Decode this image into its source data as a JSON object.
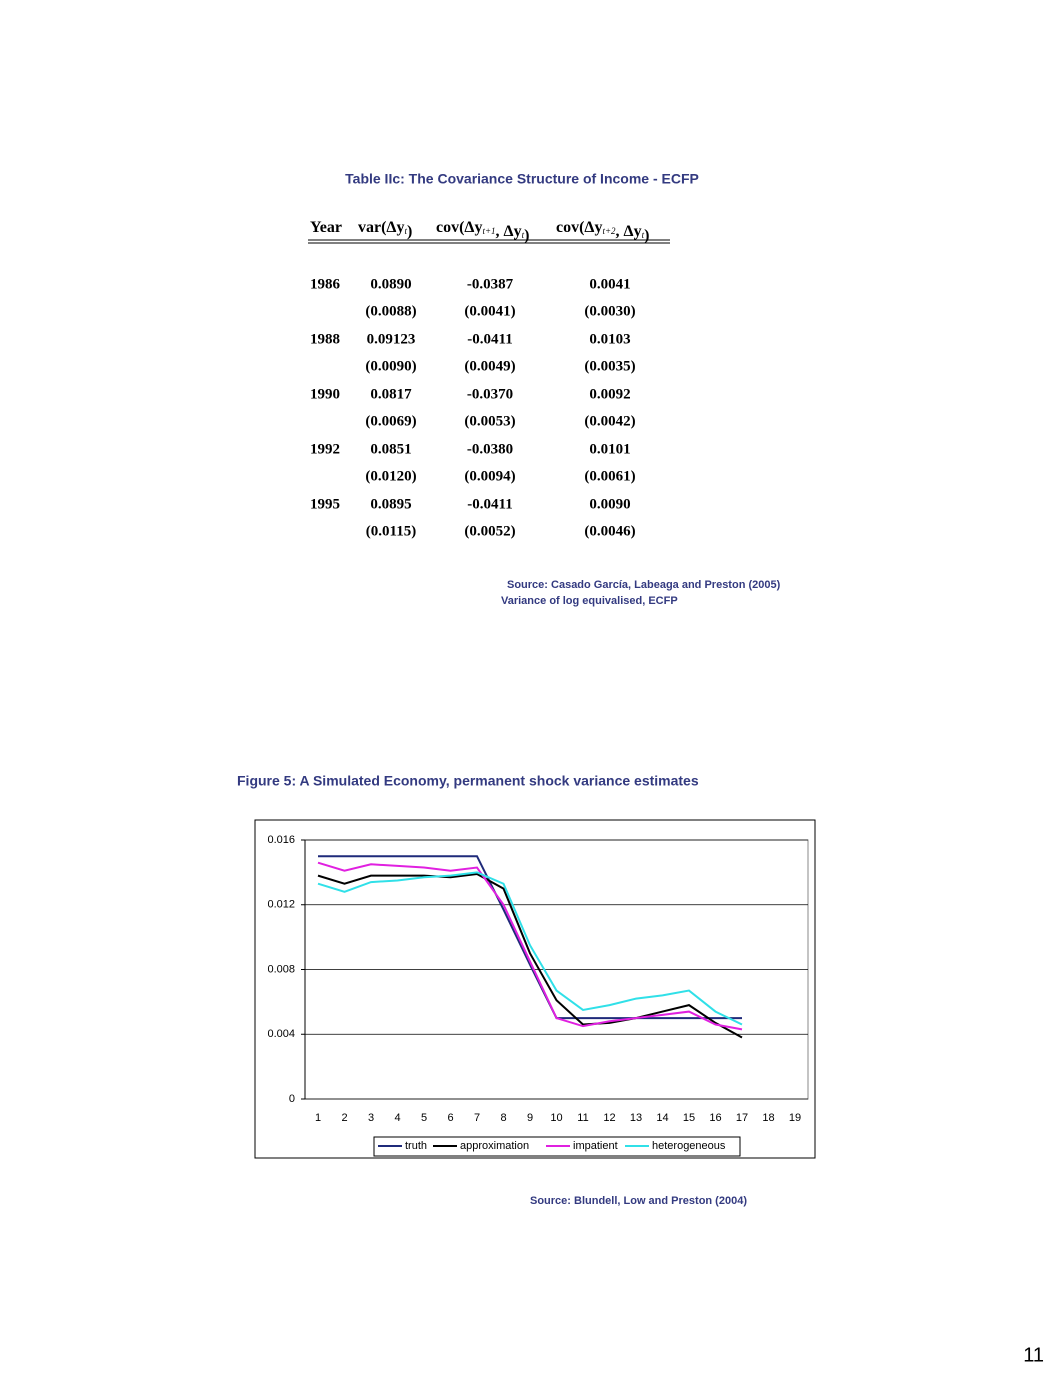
{
  "table": {
    "title": "Table IIc: The Covariance Structure of Income - ECFP",
    "header": [
      [
        {
          "text": "Year"
        }
      ],
      [
        {
          "text": "var(Δy"
        },
        {
          "sub": "t"
        },
        {
          "text": ")"
        }
      ],
      [
        {
          "text": "cov(Δy"
        },
        {
          "sub": "t+1"
        },
        {
          "text": ", Δy"
        },
        {
          "sub": "t"
        },
        {
          "text": ")"
        }
      ],
      [
        {
          "text": "cov(Δy"
        },
        {
          "sub": "t+2"
        },
        {
          "text": ", Δy"
        },
        {
          "sub": "t"
        },
        {
          "text": ")"
        }
      ]
    ],
    "rows": [
      {
        "year": "1986",
        "estimates": [
          "0.0890",
          "-0.0387",
          "0.0041"
        ],
        "std_errors": [
          "(0.0088)",
          "(0.0041)",
          "(0.0030)"
        ]
      },
      {
        "year": "1988",
        "estimates": [
          "0.09123",
          "-0.0411",
          "0.0103"
        ],
        "std_errors": [
          "(0.0090)",
          "(0.0049)",
          "(0.0035)"
        ]
      },
      {
        "year": "1990",
        "estimates": [
          "0.0817",
          "-0.0370",
          "0.0092"
        ],
        "std_errors": [
          "(0.0069)",
          "(0.0053)",
          "(0.0042)"
        ]
      },
      {
        "year": "1992",
        "estimates": [
          "0.0851",
          "-0.0380",
          "0.0101"
        ],
        "std_errors": [
          "(0.0120)",
          "(0.0094)",
          "(0.0061)"
        ]
      },
      {
        "year": "1995",
        "estimates": [
          "0.0895",
          "-0.0411",
          "0.0090"
        ],
        "std_errors": [
          "(0.0115)",
          "(0.0052)",
          "(0.0046)"
        ]
      }
    ],
    "source": [
      "Source: Casado García, Labeaga  and Preston (2005)",
      "Variance of log equivalised, ECFP"
    ]
  },
  "figure": {
    "title": "Figure 5: A Simulated Economy, permanent shock variance estimates",
    "source": "Source: Blundell, Low and Preston (2004)"
  },
  "chart_data": {
    "type": "line",
    "categories": [
      "1",
      "2",
      "3",
      "4",
      "5",
      "6",
      "7",
      "8",
      "9",
      "10",
      "11",
      "12",
      "13",
      "14",
      "15",
      "16",
      "17",
      "18",
      "19"
    ],
    "series": [
      {
        "name": "truth",
        "color": "#1f2a7a",
        "values": [
          0.015,
          0.015,
          0.015,
          0.015,
          0.015,
          0.015,
          0.015,
          0.0117,
          0.0083,
          0.005,
          0.005,
          0.005,
          0.005,
          0.005,
          0.005,
          0.005,
          0.005,
          null,
          null
        ]
      },
      {
        "name": "approximation",
        "color": "#000000",
        "values": [
          0.0138,
          0.0133,
          0.0138,
          0.0138,
          0.0138,
          0.0137,
          0.0139,
          0.013,
          0.009,
          0.0061,
          0.0046,
          0.0047,
          0.005,
          0.0054,
          0.0058,
          0.0047,
          0.0038,
          null,
          null
        ]
      },
      {
        "name": "impatient",
        "color": "#e020e0",
        "values": [
          0.0146,
          0.0141,
          0.0145,
          0.0144,
          0.0143,
          0.0141,
          0.0143,
          0.012,
          0.0085,
          0.005,
          0.0045,
          0.0048,
          0.005,
          0.0052,
          0.0054,
          0.0046,
          0.0043,
          null,
          null
        ]
      },
      {
        "name": "heterogeneous",
        "color": "#30e0e8",
        "values": [
          0.0133,
          0.0128,
          0.0134,
          0.0135,
          0.0137,
          0.0138,
          0.014,
          0.0133,
          0.0095,
          0.0067,
          0.0055,
          0.0058,
          0.0062,
          0.0064,
          0.0067,
          0.0054,
          0.0046,
          null,
          null
        ]
      }
    ],
    "ylim": [
      0,
      0.016
    ],
    "yticks": [
      0,
      0.004,
      0.008,
      0.012,
      0.016
    ],
    "grid": true,
    "legend": "bottom"
  },
  "page_number": "11"
}
